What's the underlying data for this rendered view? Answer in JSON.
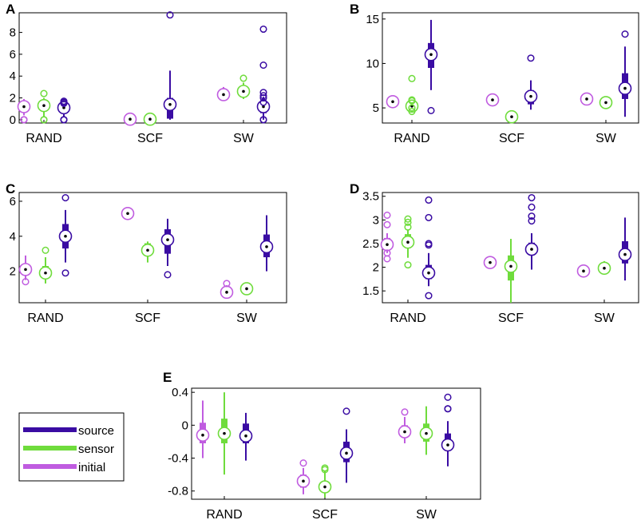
{
  "figure": {
    "colors": {
      "source": "#3a0ca3",
      "sensor": "#6fdc3c",
      "initial": "#c05ce0"
    },
    "legend": {
      "entries": [
        {
          "key": "source",
          "label": "source"
        },
        {
          "key": "sensor",
          "label": "sensor"
        },
        {
          "key": "initial",
          "label": "initial"
        }
      ]
    }
  },
  "chart_data": [
    {
      "panel": "A",
      "type": "boxplot",
      "categories": [
        "RAND",
        "SCF",
        "SW"
      ],
      "ylim": [
        -0.3,
        9.8
      ],
      "yticks": [
        0,
        2,
        4,
        6,
        8
      ],
      "groups": [
        {
          "category": "RAND",
          "series": "initial",
          "median": 1.2,
          "q1": 0.9,
          "q3": 1.6,
          "wlo": 0.4,
          "whi": 1.9,
          "outliers": [
            0,
            0,
            0
          ]
        },
        {
          "category": "RAND",
          "series": "sensor",
          "median": 1.3,
          "q1": 0.9,
          "q3": 1.8,
          "wlo": 0.3,
          "whi": 2.0,
          "outliers": [
            0,
            0,
            2.4
          ]
        },
        {
          "category": "RAND",
          "series": "source",
          "median": 1.1,
          "q1": 0.7,
          "q3": 1.4,
          "wlo": 0.3,
          "whi": 1.7,
          "outliers": [
            0,
            0,
            0,
            1.5,
            1.6,
            1.7
          ]
        },
        {
          "category": "SCF",
          "series": "initial",
          "median": 0.05,
          "q1": 0,
          "q3": 0.05,
          "wlo": 0,
          "whi": 0.05,
          "outliers": []
        },
        {
          "category": "SCF",
          "series": "sensor",
          "median": 0.05,
          "q1": 0,
          "q3": 0.05,
          "wlo": 0,
          "whi": 0.05,
          "outliers": []
        },
        {
          "category": "SCF",
          "series": "source",
          "median": 1.4,
          "q1": 0.1,
          "q3": 2.0,
          "wlo": 0,
          "whi": 4.5,
          "outliers": [
            9.6
          ]
        },
        {
          "category": "SW",
          "series": "initial",
          "median": 2.3,
          "q1": 2.1,
          "q3": 2.6,
          "wlo": 1.9,
          "whi": 3.0,
          "outliers": []
        },
        {
          "category": "SW",
          "series": "sensor",
          "median": 2.6,
          "q1": 2.3,
          "q3": 3.0,
          "wlo": 1.9,
          "whi": 3.4,
          "outliers": [
            3.8
          ]
        },
        {
          "category": "SW",
          "series": "source",
          "median": 1.2,
          "q1": 0.6,
          "q3": 1.7,
          "wlo": 0,
          "whi": 2.1,
          "outliers": [
            0,
            0,
            1.6,
            2.0,
            2.2,
            2.5,
            5.0,
            8.3
          ]
        }
      ]
    },
    {
      "panel": "B",
      "type": "boxplot",
      "categories": [
        "RAND",
        "SCF",
        "SW"
      ],
      "ylim": [
        3.3,
        15.7
      ],
      "yticks": [
        5,
        10,
        15
      ],
      "groups": [
        {
          "category": "RAND",
          "series": "initial",
          "median": 5.7,
          "q1": 5.6,
          "q3": 5.8,
          "wlo": 5.5,
          "whi": 5.9,
          "outliers": []
        },
        {
          "category": "RAND",
          "series": "sensor",
          "median": 5.2,
          "q1": 4.9,
          "q3": 5.6,
          "wlo": 4.5,
          "whi": 5.9,
          "outliers": [
            8.3,
            4.6,
            5.0,
            5.8,
            5.9
          ]
        },
        {
          "category": "RAND",
          "series": "source",
          "median": 11.0,
          "q1": 9.5,
          "q3": 12.3,
          "wlo": 7.0,
          "whi": 14.9,
          "outliers": [
            4.7
          ]
        },
        {
          "category": "SCF",
          "series": "initial",
          "median": 5.9,
          "q1": 5.8,
          "q3": 6.0,
          "wlo": 5.7,
          "whi": 6.1,
          "outliers": []
        },
        {
          "category": "SCF",
          "series": "sensor",
          "median": 4.0,
          "q1": 3.7,
          "q3": 4.3,
          "wlo": 3.5,
          "whi": 4.6,
          "outliers": []
        },
        {
          "category": "SCF",
          "series": "source",
          "median": 6.3,
          "q1": 5.4,
          "q3": 7.0,
          "wlo": 4.8,
          "whi": 8.1,
          "outliers": [
            10.6
          ]
        },
        {
          "category": "SW",
          "series": "initial",
          "median": 6.0,
          "q1": 5.9,
          "q3": 6.1,
          "wlo": 5.8,
          "whi": 6.2,
          "outliers": []
        },
        {
          "category": "SW",
          "series": "sensor",
          "median": 5.6,
          "q1": 5.4,
          "q3": 5.8,
          "wlo": 5.3,
          "whi": 5.9,
          "outliers": []
        },
        {
          "category": "SW",
          "series": "source",
          "median": 7.2,
          "q1": 6.0,
          "q3": 8.9,
          "wlo": 4.0,
          "whi": 11.9,
          "outliers": [
            13.3
          ]
        }
      ]
    },
    {
      "panel": "C",
      "type": "boxplot",
      "categories": [
        "RAND",
        "SCF",
        "SW"
      ],
      "ylim": [
        0.2,
        6.5
      ],
      "yticks": [
        2,
        4,
        6
      ],
      "groups": [
        {
          "category": "RAND",
          "series": "initial",
          "median": 2.1,
          "q1": 1.8,
          "q3": 2.4,
          "wlo": 1.5,
          "whi": 2.9,
          "outliers": [
            1.4
          ]
        },
        {
          "category": "RAND",
          "series": "sensor",
          "median": 1.9,
          "q1": 1.6,
          "q3": 2.3,
          "wlo": 1.3,
          "whi": 2.8,
          "outliers": [
            3.2
          ]
        },
        {
          "category": "RAND",
          "series": "source",
          "median": 4.0,
          "q1": 3.3,
          "q3": 4.7,
          "wlo": 2.5,
          "whi": 5.5,
          "outliers": [
            6.2,
            1.9
          ]
        },
        {
          "category": "SCF",
          "series": "initial",
          "median": 5.3,
          "q1": 5.2,
          "q3": 5.4,
          "wlo": 5.1,
          "whi": 5.5,
          "outliers": []
        },
        {
          "category": "SCF",
          "series": "sensor",
          "median": 3.2,
          "q1": 2.9,
          "q3": 3.6,
          "wlo": 2.5,
          "whi": 3.7,
          "outliers": []
        },
        {
          "category": "SCF",
          "series": "source",
          "median": 3.8,
          "q1": 3.0,
          "q3": 4.4,
          "wlo": 2.3,
          "whi": 5.0,
          "outliers": [
            1.8
          ]
        },
        {
          "category": "SW",
          "series": "initial",
          "median": 0.8,
          "q1": 0.7,
          "q3": 1.0,
          "wlo": 0.6,
          "whi": 1.2,
          "outliers": [
            1.3
          ]
        },
        {
          "category": "SW",
          "series": "sensor",
          "median": 1.0,
          "q1": 0.9,
          "q3": 1.1,
          "wlo": 0.8,
          "whi": 1.3,
          "outliers": []
        },
        {
          "category": "SW",
          "series": "source",
          "median": 3.4,
          "q1": 2.8,
          "q3": 4.1,
          "wlo": 2.0,
          "whi": 5.2,
          "outliers": []
        }
      ]
    },
    {
      "panel": "D",
      "type": "boxplot",
      "categories": [
        "RAND",
        "SCF",
        "SW"
      ],
      "ylim": [
        1.25,
        3.58
      ],
      "yticks": [
        1.5,
        2,
        2.5,
        3,
        3.5
      ],
      "ytick_labels": [
        "1.5",
        "2",
        "2.5",
        "3",
        "3.5"
      ],
      "groups": [
        {
          "category": "RAND",
          "series": "initial",
          "median": 2.48,
          "q1": 2.4,
          "q3": 2.62,
          "wlo": 2.3,
          "whi": 2.72,
          "outliers": [
            3.1,
            2.9,
            2.3,
            2.18
          ]
        },
        {
          "category": "RAND",
          "series": "sensor",
          "median": 2.53,
          "q1": 2.42,
          "q3": 2.7,
          "wlo": 2.2,
          "whi": 2.8,
          "outliers": [
            3.02,
            2.95,
            2.85,
            2.05
          ]
        },
        {
          "category": "RAND",
          "series": "source",
          "median": 1.88,
          "q1": 1.75,
          "q3": 2.05,
          "wlo": 1.6,
          "whi": 2.3,
          "outliers": [
            3.42,
            3.05,
            2.5,
            2.47,
            1.4
          ]
        },
        {
          "category": "SCF",
          "series": "initial",
          "median": 2.1,
          "q1": 2.08,
          "q3": 2.12,
          "wlo": 2.05,
          "whi": 2.15,
          "outliers": []
        },
        {
          "category": "SCF",
          "series": "sensor",
          "median": 2.02,
          "q1": 1.72,
          "q3": 2.25,
          "wlo": 1.25,
          "whi": 2.6,
          "outliers": []
        },
        {
          "category": "SCF",
          "series": "source",
          "median": 2.38,
          "q1": 2.28,
          "q3": 2.52,
          "wlo": 1.95,
          "whi": 2.72,
          "outliers": [
            3.47,
            3.27,
            3.08,
            2.98
          ]
        },
        {
          "category": "SW",
          "series": "initial",
          "median": 1.92,
          "q1": 1.88,
          "q3": 1.97,
          "wlo": 1.8,
          "whi": 2.05,
          "outliers": []
        },
        {
          "category": "SW",
          "series": "sensor",
          "median": 1.98,
          "q1": 1.93,
          "q3": 2.05,
          "wlo": 1.86,
          "whi": 2.13,
          "outliers": []
        },
        {
          "category": "SW",
          "series": "source",
          "median": 2.27,
          "q1": 2.08,
          "q3": 2.55,
          "wlo": 1.72,
          "whi": 3.05,
          "outliers": []
        }
      ]
    },
    {
      "panel": "E",
      "type": "boxplot",
      "categories": [
        "RAND",
        "SCF",
        "SW"
      ],
      "ylim": [
        -0.9,
        0.45
      ],
      "yticks": [
        -0.8,
        -0.4,
        0,
        0.4
      ],
      "ytick_labels": [
        "-0.8",
        "-0.4",
        "0",
        "0.4"
      ],
      "groups": [
        {
          "category": "RAND",
          "series": "initial",
          "median": -0.12,
          "q1": -0.22,
          "q3": 0.03,
          "wlo": -0.4,
          "whi": 0.3,
          "outliers": []
        },
        {
          "category": "RAND",
          "series": "sensor",
          "median": -0.1,
          "q1": -0.22,
          "q3": 0.08,
          "wlo": -0.6,
          "whi": 0.4,
          "outliers": []
        },
        {
          "category": "RAND",
          "series": "source",
          "median": -0.13,
          "q1": -0.22,
          "q3": 0.02,
          "wlo": -0.43,
          "whi": 0.15,
          "outliers": []
        },
        {
          "category": "SCF",
          "series": "initial",
          "median": -0.68,
          "q1": -0.76,
          "q3": -0.6,
          "wlo": -0.84,
          "whi": -0.52,
          "outliers": [
            -0.46
          ]
        },
        {
          "category": "SCF",
          "series": "sensor",
          "median": -0.75,
          "q1": -0.82,
          "q3": -0.68,
          "wlo": -0.88,
          "whi": -0.56,
          "outliers": [
            -0.52,
            -0.54
          ]
        },
        {
          "category": "SCF",
          "series": "source",
          "median": -0.34,
          "q1": -0.45,
          "q3": -0.2,
          "wlo": -0.7,
          "whi": -0.05,
          "outliers": [
            0.17
          ]
        },
        {
          "category": "SW",
          "series": "initial",
          "median": -0.08,
          "q1": -0.15,
          "q3": 0.0,
          "wlo": -0.22,
          "whi": 0.1,
          "outliers": [
            0.16
          ]
        },
        {
          "category": "SW",
          "series": "sensor",
          "median": -0.1,
          "q1": -0.2,
          "q3": 0.02,
          "wlo": -0.36,
          "whi": 0.23,
          "outliers": []
        },
        {
          "category": "SW",
          "series": "source",
          "median": -0.24,
          "q1": -0.3,
          "q3": -0.1,
          "wlo": -0.5,
          "whi": 0.05,
          "outliers": [
            0.34,
            0.2,
            0.2
          ]
        }
      ]
    }
  ]
}
